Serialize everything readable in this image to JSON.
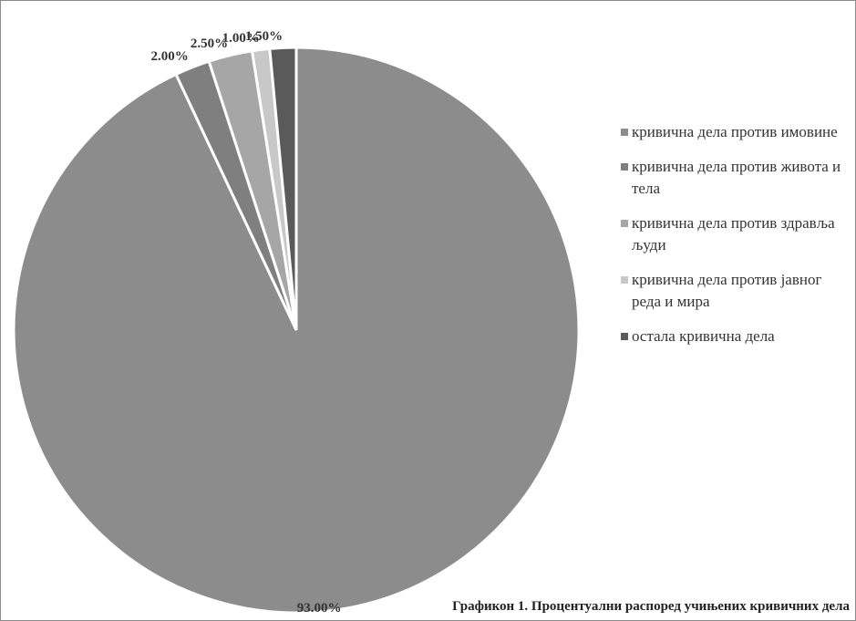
{
  "chart_data": {
    "type": "pie",
    "categories": [
      "кривична дела против имовине",
      "кривична дела против живота и тела",
      "кривична дела против здравља људи",
      "кривична дела против јавног реда и мира",
      "остала кривична дела"
    ],
    "values": [
      93.0,
      2.0,
      2.5,
      1.0,
      1.5
    ],
    "value_labels": [
      "93.00%",
      "2.00%",
      "2.50%",
      "1.00%",
      "1.50%"
    ],
    "colors": [
      "#8c8c8c",
      "#7f7f7f",
      "#a6a6a6",
      "#c8c8c8",
      "#5a5a5a"
    ],
    "start_angle_deg": 0,
    "direction": "clockwise",
    "legend_position": "right"
  },
  "caption": "Графикон 1. Процентуални распоред учињених кривичних дела"
}
